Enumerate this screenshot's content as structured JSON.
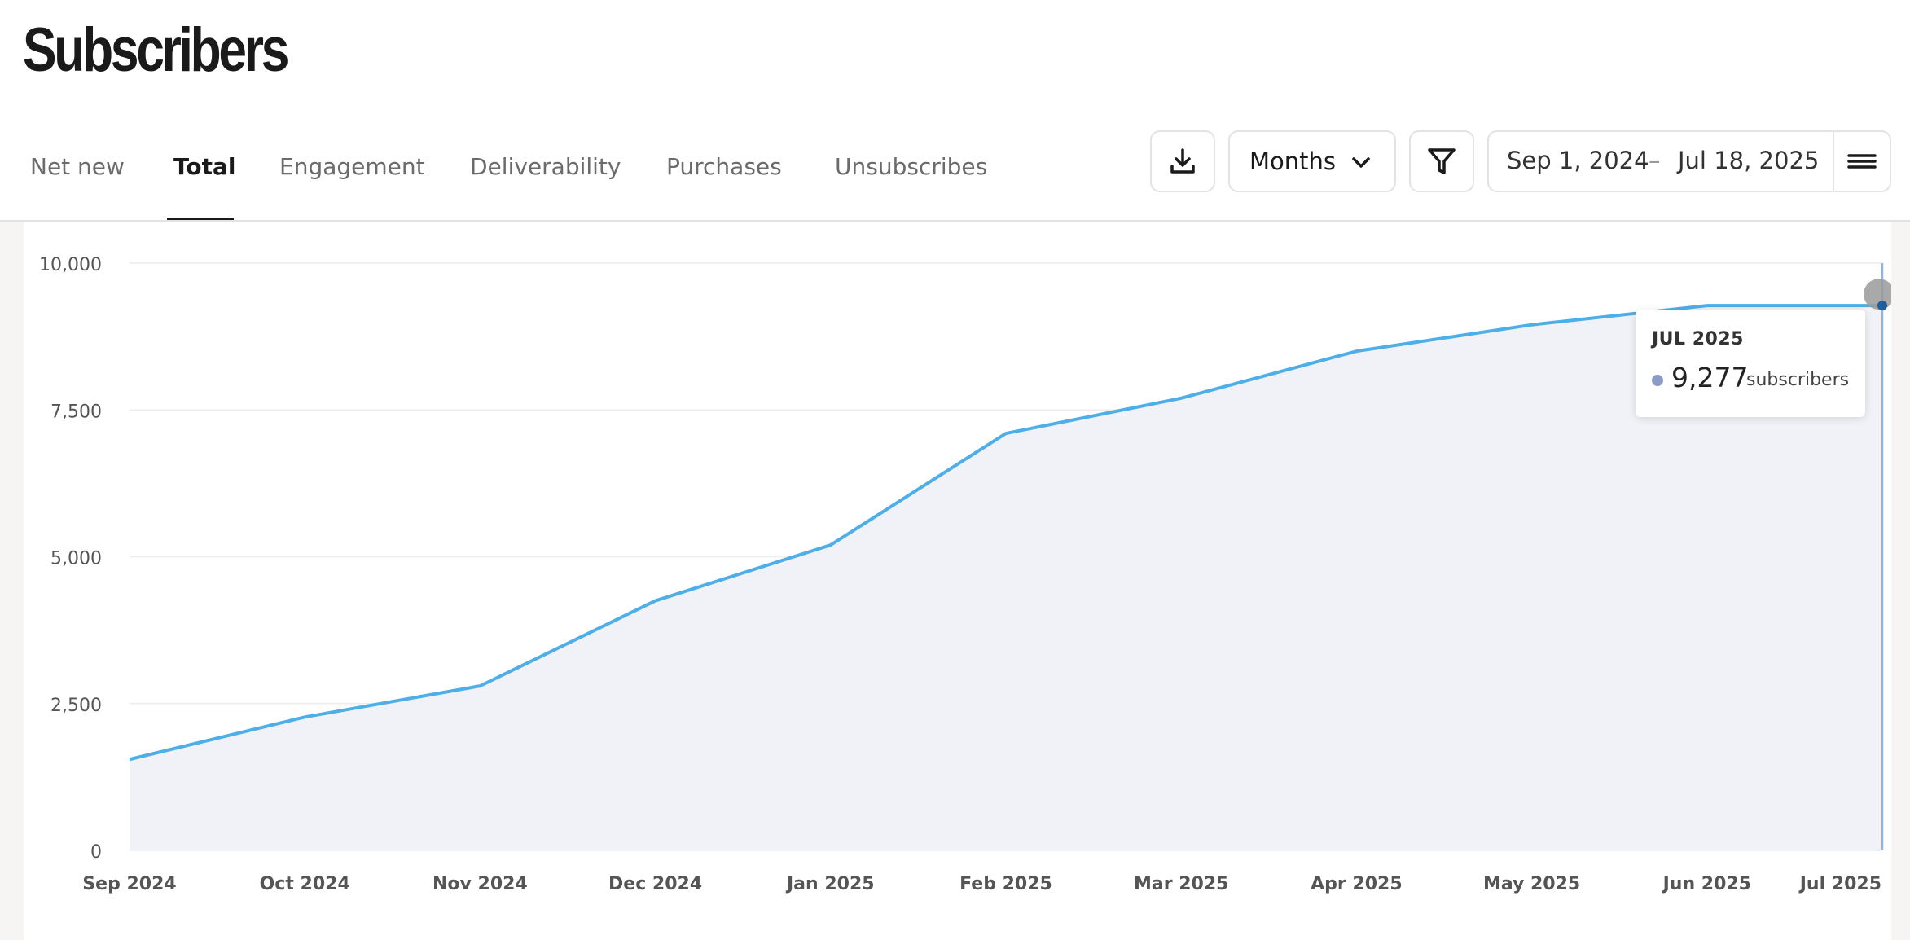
{
  "page": {
    "title": "Subscribers"
  },
  "tabs": [
    {
      "label": "Net new"
    },
    {
      "label": "Total"
    },
    {
      "label": "Engagement"
    },
    {
      "label": "Deliverability"
    },
    {
      "label": "Purchases"
    },
    {
      "label": "Unsubscribes"
    }
  ],
  "active_tab": "Total",
  "toolbar": {
    "download_icon": "download-icon",
    "granularity": "Months",
    "filter_icon": "filter-icon",
    "date_start": "Sep 1, 2024",
    "date_separator": "–",
    "date_end": "Jul 18, 2025",
    "menu_icon": "hamburger-menu-icon"
  },
  "tooltip": {
    "title": "JUL 2025",
    "value": "9,277",
    "unit": "subscribers"
  },
  "colors": {
    "line": "#4daee8",
    "area": "#f0f2f7",
    "tooltip_dot": "#8b9ac7"
  },
  "chart_data": {
    "type": "area",
    "x": [
      "Sep 2024",
      "Oct 2024",
      "Nov 2024",
      "Dec 2024",
      "Jan 2025",
      "Feb 2025",
      "Mar 2025",
      "Apr 2025",
      "May 2025",
      "Jun 2025",
      "Jul 2025"
    ],
    "series": [
      {
        "values": [
          1550,
          2270,
          2800,
          4250,
          5200,
          7100,
          7700,
          8500,
          8950,
          9277,
          9277
        ]
      }
    ],
    "y_ticks": [
      "0",
      "2,500",
      "5,000",
      "7,500",
      "10,000"
    ],
    "ylim": [
      0,
      10000
    ],
    "grid": true,
    "highlighted_index": 10
  }
}
